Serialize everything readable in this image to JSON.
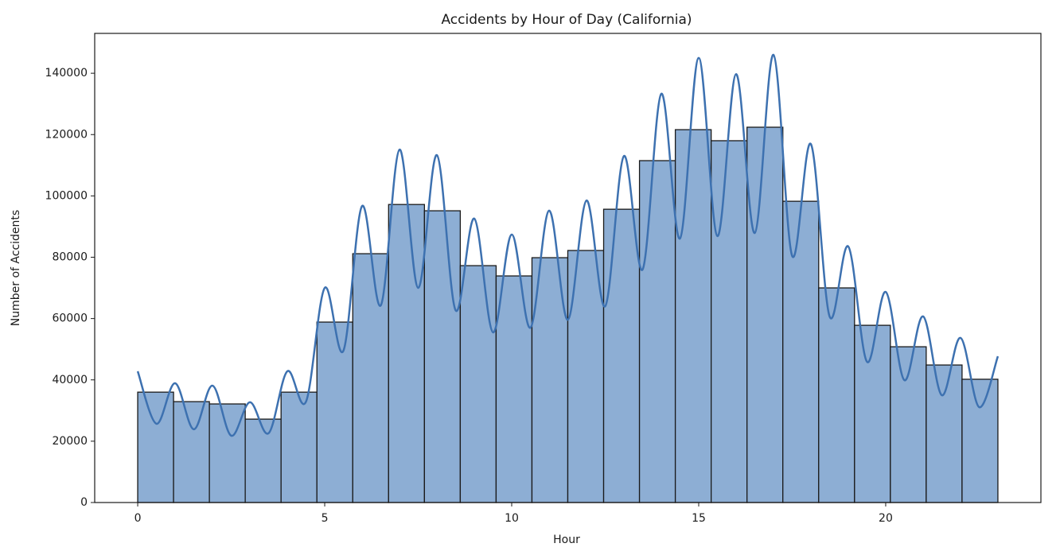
{
  "chart_data": {
    "type": "histogram",
    "title": "Accidents by Hour of Day (California)",
    "xlabel": "Hour",
    "ylabel": "Number of Accidents",
    "bins": [
      0,
      0.9583,
      1.9167,
      2.875,
      3.8333,
      4.7917,
      5.75,
      6.7083,
      7.6667,
      8.625,
      9.5833,
      10.5417,
      11.5,
      12.4583,
      13.4167,
      14.375,
      15.3333,
      16.2917,
      17.25,
      18.2083,
      19.1667,
      20.125,
      21.0833,
      22.0417,
      23
    ],
    "counts": [
      36000,
      32900,
      32150,
      27200,
      36000,
      58850,
      81150,
      97200,
      95150,
      77250,
      73900,
      79850,
      82200,
      95650,
      111500,
      121600,
      118000,
      122400,
      98250,
      70000,
      57800,
      50800,
      44850,
      40200
    ],
    "color": "#8daed4",
    "edgecolor": "#1a1a1a",
    "kde": {
      "color": "#3d71b0",
      "x": [
        0,
        0.5,
        1,
        1.5,
        2,
        2.5,
        3,
        3.5,
        4,
        4.5,
        5,
        5.5,
        6,
        6.5,
        7,
        7.5,
        8,
        8.5,
        9,
        9.5,
        10,
        10.5,
        11,
        11.5,
        12,
        12.5,
        13,
        13.5,
        14,
        14.5,
        15,
        15.5,
        16,
        16.5,
        17,
        17.5,
        18,
        18.5,
        19,
        19.5,
        20,
        20.5,
        21,
        21.5,
        22,
        22.5,
        23
      ],
      "values": [
        42800,
        25700,
        38900,
        23900,
        38100,
        21800,
        32700,
        22600,
        42800,
        32900,
        70000,
        49500,
        96700,
        64300,
        115100,
        70000,
        113300,
        62700,
        92600,
        55500,
        87400,
        57000,
        95200,
        59600,
        98500,
        64000,
        113000,
        76000,
        133300,
        86100,
        145000,
        86900,
        139700,
        87900,
        146000,
        80400,
        116900,
        60700,
        83500,
        45900,
        68700,
        39900,
        60700,
        35000,
        53700,
        31100,
        47700
      ]
    },
    "xlim": [
      -1.15,
      24.15
    ],
    "xticks": [
      0,
      5,
      10,
      15,
      20
    ],
    "ylim": [
      0,
      153000
    ],
    "yticks": [
      0,
      20000,
      40000,
      60000,
      80000,
      100000,
      120000,
      140000
    ]
  }
}
